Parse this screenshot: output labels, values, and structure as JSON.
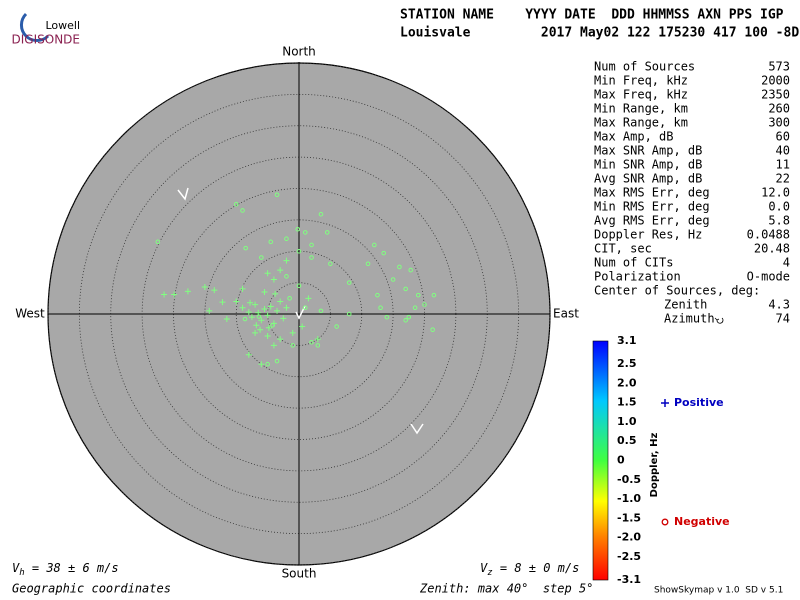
{
  "logo": {
    "top": "Lowell",
    "bottom": "DIGISONDE"
  },
  "header": {
    "row1": "STATION NAME    YYYY DATE  DDD HHMMSS AXN PPS IGP",
    "row2": "Louisvale         2017 May02 122 175230 417 100 -8D"
  },
  "stats": [
    {
      "label": "Num of Sources",
      "value": "573"
    },
    {
      "label": "Min Freq, kHz",
      "value": "2000"
    },
    {
      "label": "Max Freq, kHz",
      "value": "2350"
    },
    {
      "label": "Min Range, km",
      "value": "260"
    },
    {
      "label": "Max Range, km",
      "value": "300"
    },
    {
      "label": "Max Amp, dB",
      "value": "60"
    },
    {
      "label": "Max SNR Amp, dB",
      "value": "40"
    },
    {
      "label": "Min SNR Amp, dB",
      "value": "11"
    },
    {
      "label": "Avg SNR Amp, dB",
      "value": "22"
    },
    {
      "label": "Max RMS Err, deg",
      "value": "12.0"
    },
    {
      "label": "Min RMS Err, deg",
      "value": "0.0"
    },
    {
      "label": "Avg RMS Err, deg",
      "value": "5.8"
    },
    {
      "label": "Doppler Res, Hz",
      "value": "0.0488"
    },
    {
      "label": "CIT, sec",
      "value": "20.48"
    },
    {
      "label": "Num of CITs",
      "value": "4"
    },
    {
      "label": "Polarization",
      "value": "O-mode"
    }
  ],
  "center": {
    "title": "Center of Sources, deg:",
    "rows": [
      {
        "label": "Zenith",
        "value": "4.3"
      },
      {
        "label": "Azimuth",
        "value": "74"
      }
    ]
  },
  "chart_data": {
    "type": "skymap",
    "directions": {
      "north": "North",
      "south": "South",
      "east": "East",
      "west": "West"
    },
    "rlim": [
      0,
      40
    ],
    "rticks": [
      5,
      10,
      15,
      20,
      25,
      30,
      35,
      40
    ],
    "series": [
      {
        "name": "Positive",
        "marker": "plus",
        "color": "#80ff80",
        "legend_color": "#0000c0",
        "x": [
          -21.5,
          -19.9,
          -17.7,
          -15,
          -13.5,
          -12.2,
          -14.3,
          -11.5,
          -10,
          -9,
          -8,
          -7.5,
          -7,
          -6.5,
          -6,
          -5.5,
          -5,
          -4.5,
          -4,
          -3.5,
          -3,
          -2.5,
          -2,
          -6.2,
          -5,
          -4,
          -3,
          -7,
          -8,
          -6,
          -5.5,
          -4,
          -3,
          -5,
          -2,
          -9,
          -1,
          0.5,
          1.5,
          3,
          -6.8,
          -7.8,
          -4.8,
          -3.8
        ],
        "y": [
          3.1,
          3.1,
          3.6,
          4.3,
          3.8,
          1.9,
          0.5,
          -0.8,
          2,
          1,
          0.3,
          -0.5,
          1.5,
          0.2,
          -1,
          0.8,
          -0.2,
          1.2,
          -1.5,
          0.5,
          2,
          -0.7,
          1,
          -2.5,
          -3.5,
          -5,
          -4,
          -3,
          -6.5,
          -8,
          3.5,
          5.5,
          7,
          6.5,
          8.5,
          4,
          -3,
          -2,
          2.5,
          -4,
          -1.8,
          1.8,
          -2.2,
          3.2
        ]
      },
      {
        "name": "Negative",
        "marker": "circle",
        "color": "#80ff80",
        "legend_color": "#d00000",
        "x": [
          -0.2,
          1,
          3.5,
          4.5,
          2,
          0,
          -4.5,
          -2,
          -10,
          -22.5,
          -9,
          -3.5,
          -8.5,
          -6,
          -2,
          0,
          2,
          5,
          8,
          11,
          12,
          12.5,
          13,
          15,
          16,
          13.5,
          17,
          17.8,
          19,
          18.5,
          20,
          21.5,
          17,
          17.5,
          14,
          21.3,
          8,
          6,
          3,
          2,
          -1,
          -3.5,
          -5,
          -1.5,
          1,
          3.5,
          -4.2,
          -6.4,
          -8.6
        ],
        "y": [
          13.5,
          13,
          15.9,
          13,
          11,
          10,
          11.5,
          12,
          17.5,
          11.5,
          16.5,
          19,
          10.5,
          9,
          6,
          4.5,
          9,
          8,
          5,
          8,
          11,
          3,
          1,
          5.5,
          7.5,
          9.7,
          4,
          7,
          3,
          1,
          1.5,
          3,
          -1,
          -0.5,
          -0.5,
          -2.5,
          0,
          -2,
          -5,
          -4.5,
          -5,
          -7.5,
          -8,
          2.5,
          1,
          0.5,
          -1.8,
          -0.4,
          -0.8
        ]
      }
    ],
    "colorbar": {
      "label": "Doppler, Hz",
      "lim": [
        -3.1,
        3.1
      ],
      "ticks": [
        3.1,
        2.5,
        {
          "value": 2,
          "label": "2.0"
        },
        1.5,
        {
          "value": 1,
          "label": "1.0"
        },
        0.5,
        0,
        -0.5,
        {
          "value": -1,
          "label": "-1.0"
        },
        -1.5,
        {
          "value": -2,
          "label": "-2.0"
        },
        -2.5,
        -3.1
      ]
    },
    "vh": {
      "symbol": "V",
      "sub": "h",
      "text": " = 38 ± 6 m/s"
    },
    "vz": {
      "symbol": "V",
      "sub": "z",
      "text": " = 8 ± 0 m/s"
    },
    "coords": "Geographic coordinates",
    "zenith_note": "Zenith: max 40°  step 5°",
    "version": "ShowSkymap v 1.0  SD v 5.1"
  }
}
